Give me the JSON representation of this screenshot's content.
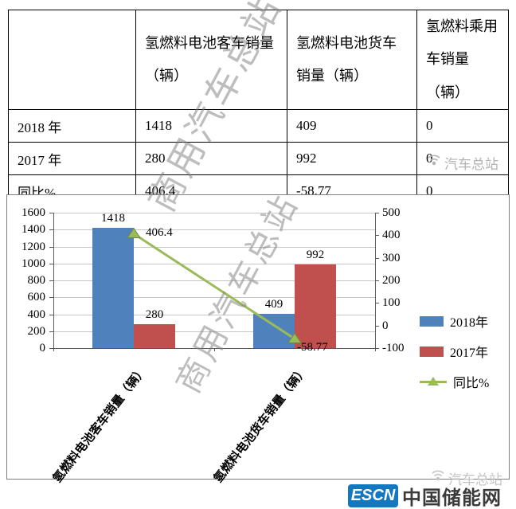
{
  "table": {
    "col_headers": [
      "",
      "氢燃料电池客车销量（辆）",
      "氢燃料电池货车销量（辆）",
      "氢燃料乘用车销量（辆）"
    ],
    "rows": [
      {
        "label": "2018 年",
        "values": [
          "1418",
          "409",
          "0"
        ]
      },
      {
        "label": "2017 年",
        "values": [
          "280",
          "992",
          "0"
        ]
      },
      {
        "label": "同比%",
        "values": [
          "406.4",
          "-58.77",
          "0"
        ]
      }
    ]
  },
  "chart_data": {
    "type": "bar",
    "categories": [
      "氢燃料电池客车销量（辆）",
      "氢燃料电池货车销量（辆）"
    ],
    "series": [
      {
        "name": "2018年",
        "kind": "bar",
        "axis": "left",
        "color": "#4f81bd",
        "values": [
          1418,
          409
        ]
      },
      {
        "name": "2017年",
        "kind": "bar",
        "axis": "left",
        "color": "#c0504d",
        "values": [
          280,
          992
        ]
      },
      {
        "name": "同比%",
        "kind": "line",
        "axis": "right",
        "color": "#9bbb59",
        "values": [
          406.4,
          -58.77
        ]
      }
    ],
    "left_axis": {
      "min": 0,
      "max": 1600,
      "step": 200
    },
    "right_axis": {
      "min": -100,
      "max": 500,
      "step": 100
    },
    "grid": true,
    "legend_position": "right"
  },
  "watermarks": {
    "diagonal_text": "商用汽车总站",
    "small_text": "汽车总站"
  },
  "footer": {
    "logo_abbr": "ESCN",
    "logo_name": "中国储能网"
  }
}
